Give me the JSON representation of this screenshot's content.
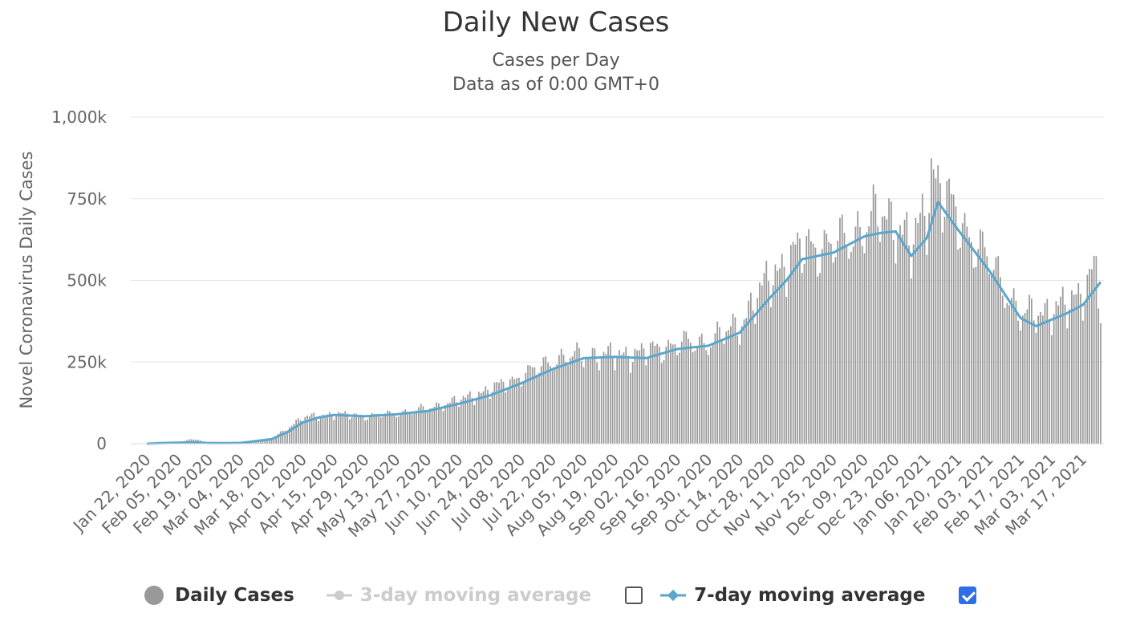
{
  "chart_data": {
    "type": "bar",
    "title": "Daily New Cases",
    "subtitle_1": "Cases per Day",
    "subtitle_2": "Data as of 0:00 GMT+0",
    "ylabel": "Novel Coronavirus Daily Cases",
    "ylim": [
      0,
      1000000
    ],
    "y_ticks": [
      0,
      250000,
      500000,
      750000,
      1000000
    ],
    "y_tick_labels": [
      "0",
      "250k",
      "500k",
      "750k",
      "1,000k"
    ],
    "x_start": "2020-01-22",
    "x_end": "2021-03-25",
    "x_tick_labels": [
      "Jan 22, 2020",
      "Feb 05, 2020",
      "Feb 19, 2020",
      "Mar 04, 2020",
      "Mar 18, 2020",
      "Apr 01, 2020",
      "Apr 15, 2020",
      "Apr 29, 2020",
      "May 13, 2020",
      "May 27, 2020",
      "Jun 10, 2020",
      "Jun 24, 2020",
      "Jul 08, 2020",
      "Jul 22, 2020",
      "Aug 05, 2020",
      "Aug 19, 2020",
      "Sep 02, 2020",
      "Sep 16, 2020",
      "Sep 30, 2020",
      "Oct 14, 2020",
      "Oct 28, 2020",
      "Nov 11, 2020",
      "Nov 25, 2020",
      "Dec 09, 2020",
      "Dec 23, 2020",
      "Jan 06, 2021",
      "Jan 20, 2021",
      "Feb 03, 2021",
      "Feb 17, 2021",
      "Mar 03, 2021",
      "Mar 17, 2021"
    ],
    "grid": true,
    "legend_position": "bottom-center",
    "series": [
      {
        "name": "Daily Cases",
        "kind": "bar",
        "color": "#999999",
        "anchors": [
          [
            "2020-01-22",
            600
          ],
          [
            "2020-02-05",
            3500
          ],
          [
            "2020-02-12",
            15000
          ],
          [
            "2020-02-19",
            1500
          ],
          [
            "2020-03-04",
            2500
          ],
          [
            "2020-03-18",
            15000
          ],
          [
            "2020-04-01",
            80000
          ],
          [
            "2020-04-15",
            90000
          ],
          [
            "2020-04-29",
            85000
          ],
          [
            "2020-05-13",
            92000
          ],
          [
            "2020-05-27",
            108000
          ],
          [
            "2020-06-10",
            132000
          ],
          [
            "2020-06-24",
            165000
          ],
          [
            "2020-07-08",
            205000
          ],
          [
            "2020-07-22",
            255000
          ],
          [
            "2020-08-05",
            272000
          ],
          [
            "2020-08-19",
            268000
          ],
          [
            "2020-09-02",
            280000
          ],
          [
            "2020-09-16",
            305000
          ],
          [
            "2020-09-30",
            310000
          ],
          [
            "2020-10-14",
            365000
          ],
          [
            "2020-10-28",
            510000
          ],
          [
            "2020-11-11",
            600000
          ],
          [
            "2020-11-25",
            605000
          ],
          [
            "2020-12-09",
            660000
          ],
          [
            "2020-12-16",
            700000
          ],
          [
            "2020-12-23",
            680000
          ],
          [
            "2020-12-30",
            600000
          ],
          [
            "2021-01-06",
            720000
          ],
          [
            "2021-01-08",
            840000
          ],
          [
            "2021-01-13",
            770000
          ],
          [
            "2021-01-20",
            680000
          ],
          [
            "2021-02-03",
            560000
          ],
          [
            "2021-02-17",
            390000
          ],
          [
            "2021-02-24",
            400000
          ],
          [
            "2021-03-03",
            410000
          ],
          [
            "2021-03-10",
            420000
          ],
          [
            "2021-03-17",
            470000
          ],
          [
            "2021-03-23",
            550000
          ],
          [
            "2021-03-25",
            400000
          ]
        ]
      },
      {
        "name": "3-day moving average",
        "kind": "line",
        "color": "#cccccc",
        "visible": false
      },
      {
        "name": "7-day moving average",
        "kind": "line",
        "color": "#5aa6cc",
        "visible": true,
        "points": [
          [
            "2020-01-22",
            0
          ],
          [
            "2020-01-29",
            2000
          ],
          [
            "2020-02-05",
            3000
          ],
          [
            "2020-02-12",
            4000
          ],
          [
            "2020-02-19",
            1800
          ],
          [
            "2020-03-04",
            2200
          ],
          [
            "2020-03-18",
            14000
          ],
          [
            "2020-03-25",
            35000
          ],
          [
            "2020-04-01",
            65000
          ],
          [
            "2020-04-08",
            80000
          ],
          [
            "2020-04-15",
            88000
          ],
          [
            "2020-04-29",
            84000
          ],
          [
            "2020-05-13",
            90000
          ],
          [
            "2020-05-27",
            100000
          ],
          [
            "2020-06-10",
            122000
          ],
          [
            "2020-06-24",
            148000
          ],
          [
            "2020-07-08",
            185000
          ],
          [
            "2020-07-22",
            228000
          ],
          [
            "2020-08-05",
            262000
          ],
          [
            "2020-08-19",
            266000
          ],
          [
            "2020-09-02",
            262000
          ],
          [
            "2020-09-16",
            290000
          ],
          [
            "2020-09-30",
            300000
          ],
          [
            "2020-10-14",
            340000
          ],
          [
            "2020-10-28",
            450000
          ],
          [
            "2020-11-04",
            500000
          ],
          [
            "2020-11-11",
            565000
          ],
          [
            "2020-11-25",
            585000
          ],
          [
            "2020-12-09",
            635000
          ],
          [
            "2020-12-16",
            645000
          ],
          [
            "2020-12-23",
            650000
          ],
          [
            "2020-12-30",
            575000
          ],
          [
            "2021-01-06",
            630000
          ],
          [
            "2021-01-11",
            740000
          ],
          [
            "2021-01-20",
            655000
          ],
          [
            "2021-02-03",
            530000
          ],
          [
            "2021-02-17",
            385000
          ],
          [
            "2021-02-24",
            360000
          ],
          [
            "2021-03-03",
            380000
          ],
          [
            "2021-03-10",
            400000
          ],
          [
            "2021-03-17",
            425000
          ],
          [
            "2021-03-25",
            495000
          ]
        ]
      }
    ]
  },
  "legend": {
    "daily_cases": "Daily Cases",
    "ma3": "3-day moving average",
    "ma7": "7-day moving average"
  }
}
